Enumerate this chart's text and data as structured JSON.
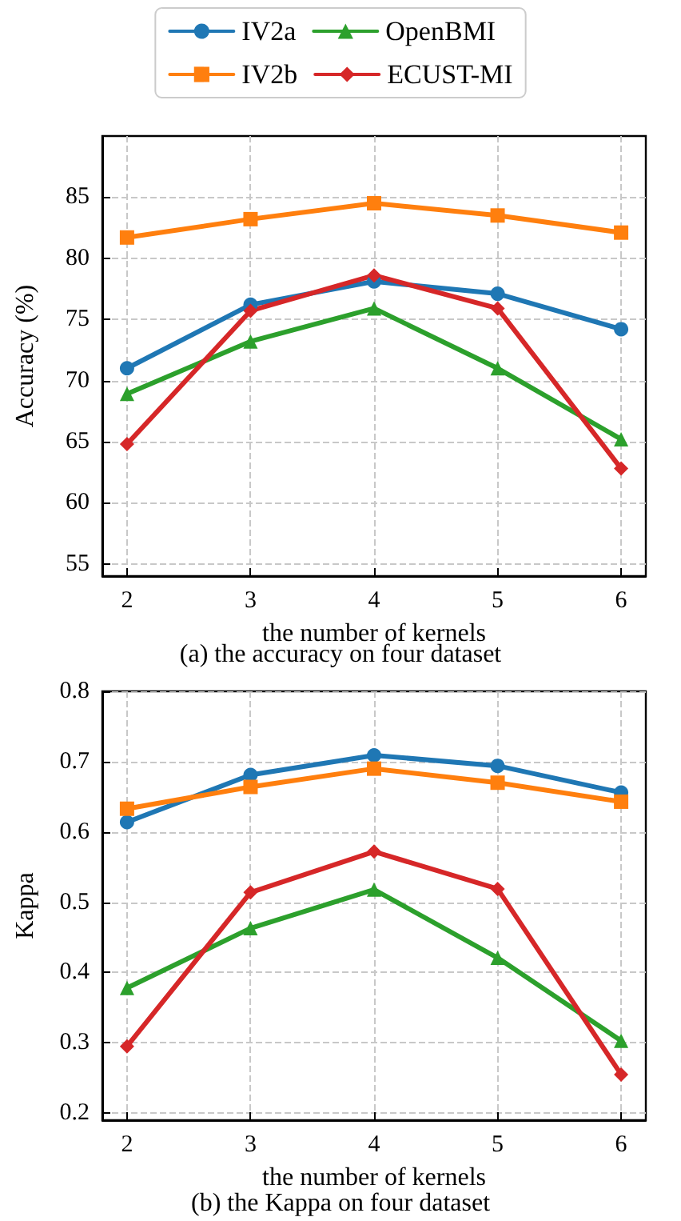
{
  "chart_data": [
    {
      "type": "line",
      "title": "(a) the accuracy on four dataset",
      "xlabel": "the number of kernels",
      "ylabel": "Accuracy (%)",
      "x": [
        2,
        3,
        4,
        5,
        6
      ],
      "xlim": [
        1.8,
        6.2
      ],
      "xticks": [
        2,
        3,
        4,
        5,
        6
      ],
      "ylim": [
        54,
        90
      ],
      "yticks": [
        55,
        60,
        65,
        70,
        75,
        80,
        85
      ],
      "grid": true,
      "legend": "top",
      "line_style": "solid",
      "series": [
        {
          "name": "IV2a",
          "color": "#1f77b4",
          "marker": "circle",
          "values": [
            71.0,
            76.2,
            78.1,
            77.1,
            74.2
          ]
        },
        {
          "name": "IV2b",
          "color": "#ff7f0e",
          "marker": "square",
          "values": [
            81.7,
            83.2,
            84.5,
            83.5,
            82.1
          ]
        },
        {
          "name": "OpenBMI",
          "color": "#2ca02c",
          "marker": "triangle",
          "values": [
            68.9,
            73.2,
            75.9,
            71.0,
            65.2
          ]
        },
        {
          "name": "ECUST-MI",
          "color": "#d62728",
          "marker": "diamond",
          "values": [
            64.8,
            75.7,
            78.6,
            75.9,
            62.8
          ]
        }
      ]
    },
    {
      "type": "line",
      "title": "(b) the Kappa on four dataset",
      "xlabel": "the number of kernels",
      "ylabel": "Kappa",
      "x": [
        2,
        3,
        4,
        5,
        6
      ],
      "xlim": [
        1.8,
        6.2
      ],
      "xticks": [
        2,
        3,
        4,
        5,
        6
      ],
      "ylim": [
        0.19,
        0.8
      ],
      "yticks": [
        0.2,
        0.3,
        0.4,
        0.5,
        0.6,
        0.7,
        0.8
      ],
      "grid": true,
      "line_style": "solid",
      "series": [
        {
          "color": "#1f77b4",
          "marker": "circle",
          "values": [
            0.614,
            0.681,
            0.709,
            0.694,
            0.656
          ]
        },
        {
          "color": "#ff7f0e",
          "marker": "square",
          "values": [
            0.633,
            0.664,
            0.69,
            0.67,
            0.643
          ]
        },
        {
          "color": "#2ca02c",
          "marker": "triangle",
          "values": [
            0.378,
            0.463,
            0.518,
            0.421,
            0.303
          ]
        },
        {
          "color": "#d62728",
          "marker": "diamond",
          "values": [
            0.295,
            0.514,
            0.572,
            0.519,
            0.255
          ]
        }
      ]
    }
  ]
}
